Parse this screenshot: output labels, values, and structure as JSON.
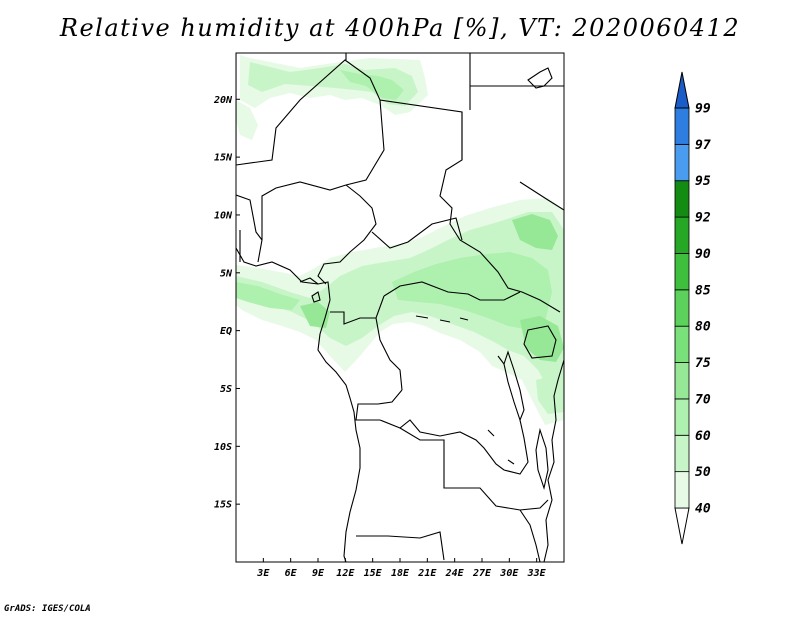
{
  "title": "Relative humidity at 400hPa [%], VT: 2020060412",
  "credit": "GrADS: IGES/COLA",
  "map": {
    "lon_range": [
      0,
      36
    ],
    "lat_range": [
      -20,
      24
    ],
    "lon_ticks": [
      {
        "v": 3,
        "label": "3E"
      },
      {
        "v": 6,
        "label": "6E"
      },
      {
        "v": 9,
        "label": "9E"
      },
      {
        "v": 12,
        "label": "12E"
      },
      {
        "v": 15,
        "label": "15E"
      },
      {
        "v": 18,
        "label": "18E"
      },
      {
        "v": 21,
        "label": "21E"
      },
      {
        "v": 24,
        "label": "24E"
      },
      {
        "v": 27,
        "label": "27E"
      },
      {
        "v": 30,
        "label": "30E"
      },
      {
        "v": 33,
        "label": "33E"
      }
    ],
    "lat_ticks": [
      {
        "v": 20,
        "label": "20N"
      },
      {
        "v": 15,
        "label": "15N"
      },
      {
        "v": 10,
        "label": "10N"
      },
      {
        "v": 5,
        "label": "5N"
      },
      {
        "v": 0,
        "label": "EQ"
      },
      {
        "v": -5,
        "label": "5S"
      },
      {
        "v": -10,
        "label": "10S"
      },
      {
        "v": -15,
        "label": "15S"
      }
    ]
  },
  "colorbar": {
    "levels": [
      "40",
      "50",
      "60",
      "70",
      "75",
      "80",
      "85",
      "90",
      "92",
      "95",
      "97",
      "99"
    ],
    "colors": [
      "#e6fae6",
      "#c8f5c8",
      "#aef0ae",
      "#96e896",
      "#7ae07a",
      "#5cd25c",
      "#3ec03e",
      "#26a826",
      "#148c14",
      "#4a9cf0",
      "#2e7de0",
      "#1a5cc8"
    ],
    "upper_arrow_color": "#1a5cc8",
    "lower_arrow_color": "#ffffff"
  }
}
